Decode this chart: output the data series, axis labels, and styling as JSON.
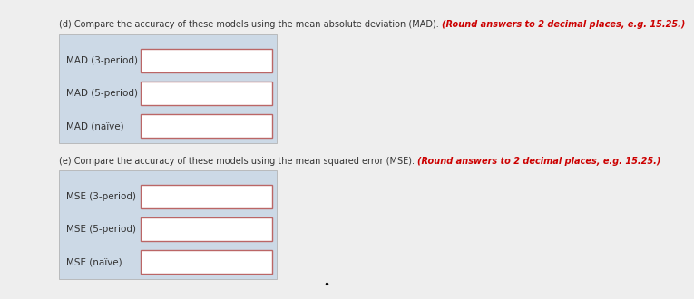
{
  "section_d_text_normal": "(d) Compare the accuracy of these models using the mean absolute deviation (MAD). ",
  "section_d_text_bold": "(Round answers to 2 decimal places, e.g. 15.25.)",
  "section_e_text_normal": "(e) Compare the accuracy of these models using the mean squared error (MSE). ",
  "section_e_text_bold": "(Round answers to 2 decimal places, e.g. 15.25.)",
  "mad_labels": [
    "MAD (3-period)",
    "MAD (5-period)",
    "MAD (naïve)"
  ],
  "mse_labels": [
    "MSE (3-period)",
    "MSE (5-period)",
    "MSE (naïve)"
  ],
  "bg_color": "#eeeeee",
  "panel_bg": "#ccd9e6",
  "input_box_color": "#ffffff",
  "input_box_border": "#bb6666",
  "label_font_size": 7.5,
  "header_font_size": 7.0,
  "bold_color": "#cc0000",
  "normal_color": "#333333"
}
